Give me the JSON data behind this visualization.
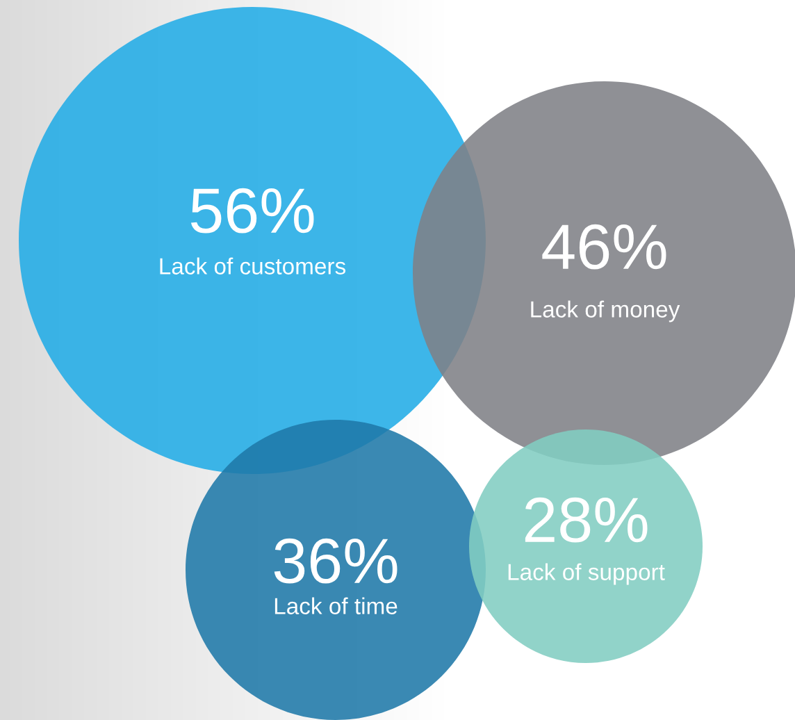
{
  "chart_data": {
    "type": "other",
    "categories": [
      "Lack of customers",
      "Lack of money",
      "Lack of time",
      "Lack of support"
    ],
    "values": [
      56,
      46,
      36,
      28
    ],
    "value_labels": [
      "56%",
      "46%",
      "36%",
      "28%"
    ],
    "colors": [
      "#22ace6",
      "#7f8186",
      "#1f79a8",
      "#82cdc1"
    ]
  }
}
